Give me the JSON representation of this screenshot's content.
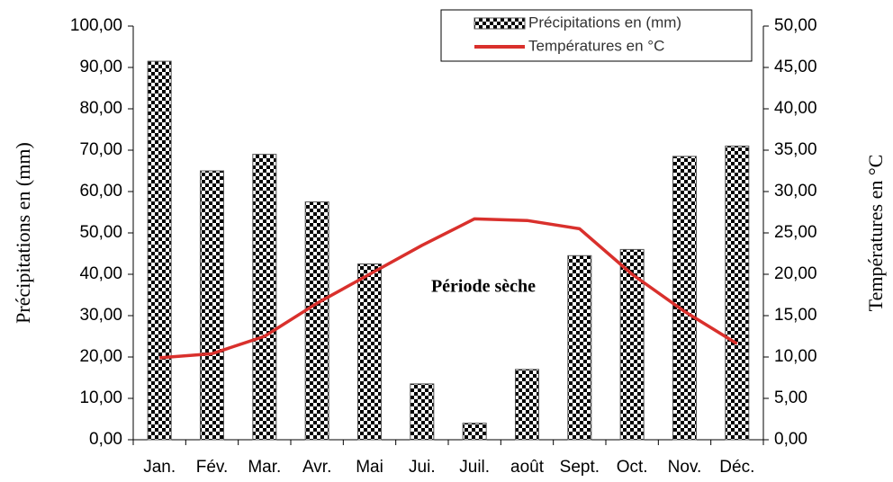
{
  "chart_data": {
    "type": "bar_line",
    "categories": [
      "Jan.",
      "Fév.",
      "Mar.",
      "Avr.",
      "Mai",
      "Jui.",
      "Juil.",
      "août",
      "Sept.",
      "Oct.",
      "Nov.",
      "Déc."
    ],
    "series": [
      {
        "name": "Précipitations en (mm)",
        "color": "#000000",
        "type": "bar",
        "axis": "y",
        "values": [
          91.5,
          65,
          69,
          57.5,
          42.5,
          13.5,
          4,
          17,
          44.5,
          46,
          68.5,
          71
        ]
      },
      {
        "name": "Températures en °C",
        "color": "#d9302c",
        "type": "line",
        "axis": "y2",
        "values": [
          9.9,
          10.4,
          12.5,
          16.5,
          20,
          23.5,
          26.7,
          26.5,
          25.5,
          20,
          15.5,
          11.6
        ]
      }
    ],
    "ylabel": "Précipitations en (mm)",
    "y2label": "Températures en °C",
    "annotation": "Période sèche",
    "ylim": [
      0,
      100
    ],
    "yticks": [
      {
        "value": 0,
        "label": "0,00"
      },
      {
        "value": 10,
        "label": "10,00"
      },
      {
        "value": 20,
        "label": "20,00"
      },
      {
        "value": 30,
        "label": "30,00"
      },
      {
        "value": 40,
        "label": "40,00"
      },
      {
        "value": 50,
        "label": "50,00"
      },
      {
        "value": 60,
        "label": "60,00"
      },
      {
        "value": 70,
        "label": "70,00"
      },
      {
        "value": 80,
        "label": "80,00"
      },
      {
        "value": 90,
        "label": "90,00"
      },
      {
        "value": 100,
        "label": "100,00"
      }
    ],
    "y2lim": [
      0,
      50
    ],
    "y2ticks": [
      {
        "value": 0,
        "label": "0,00"
      },
      {
        "value": 5,
        "label": "5,00"
      },
      {
        "value": 10,
        "label": "10,00"
      },
      {
        "value": 15,
        "label": "15,00"
      },
      {
        "value": 20,
        "label": "20,00"
      },
      {
        "value": 25,
        "label": "25,00"
      },
      {
        "value": 30,
        "label": "30,00"
      },
      {
        "value": 35,
        "label": "35,00"
      },
      {
        "value": 40,
        "label": "40,00"
      },
      {
        "value": 45,
        "label": "45,00"
      },
      {
        "value": 50,
        "label": "50,00"
      }
    ]
  }
}
